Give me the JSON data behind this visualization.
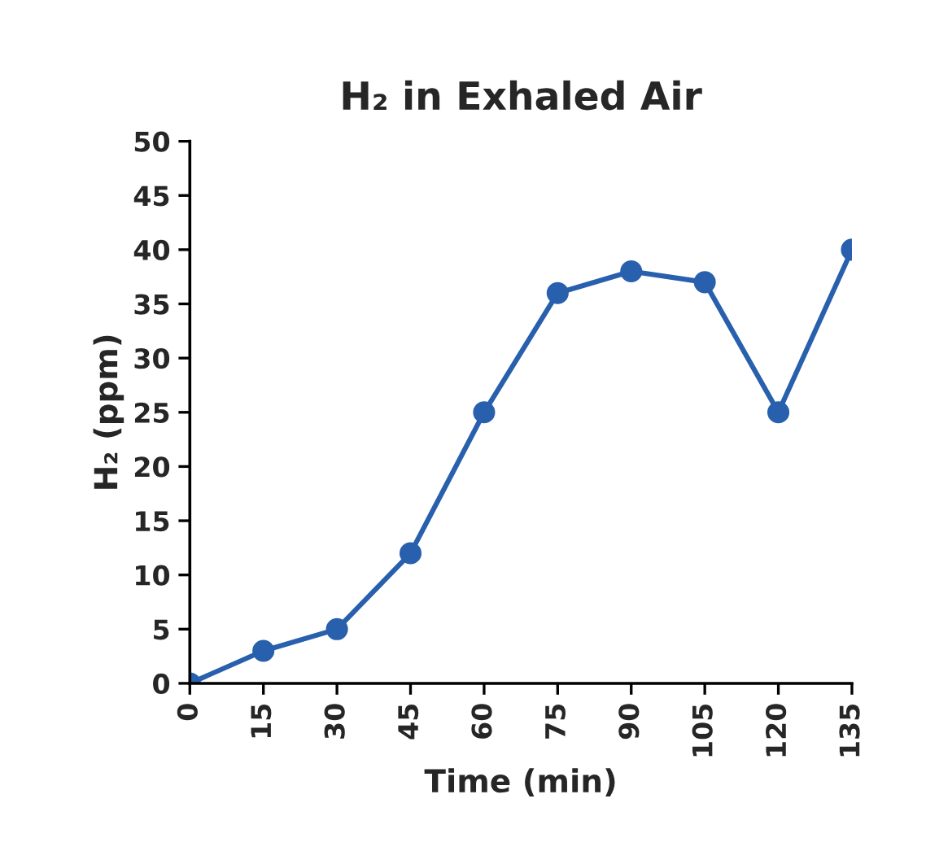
{
  "chart_data": {
    "type": "line",
    "title": "H₂ in Exhaled Air",
    "xlabel": "Time (min)",
    "ylabel": "H₂ (ppm)",
    "x": [
      0,
      15,
      30,
      45,
      60,
      75,
      90,
      105,
      120,
      135
    ],
    "series": [
      {
        "color": "#2860ad",
        "values": [
          0,
          3,
          5,
          12,
          25,
          36,
          38,
          37,
          25,
          40
        ]
      }
    ],
    "xlim": [
      0,
      135
    ],
    "xticks": [
      0,
      15,
      30,
      45,
      60,
      75,
      90,
      105,
      120,
      135
    ],
    "ylim": [
      0,
      50
    ],
    "yticks": [
      0,
      5,
      10,
      15,
      20,
      25,
      30,
      35,
      40,
      45,
      50
    ],
    "grid": false,
    "legend": false,
    "marker": "circle",
    "line_style": "solid"
  }
}
